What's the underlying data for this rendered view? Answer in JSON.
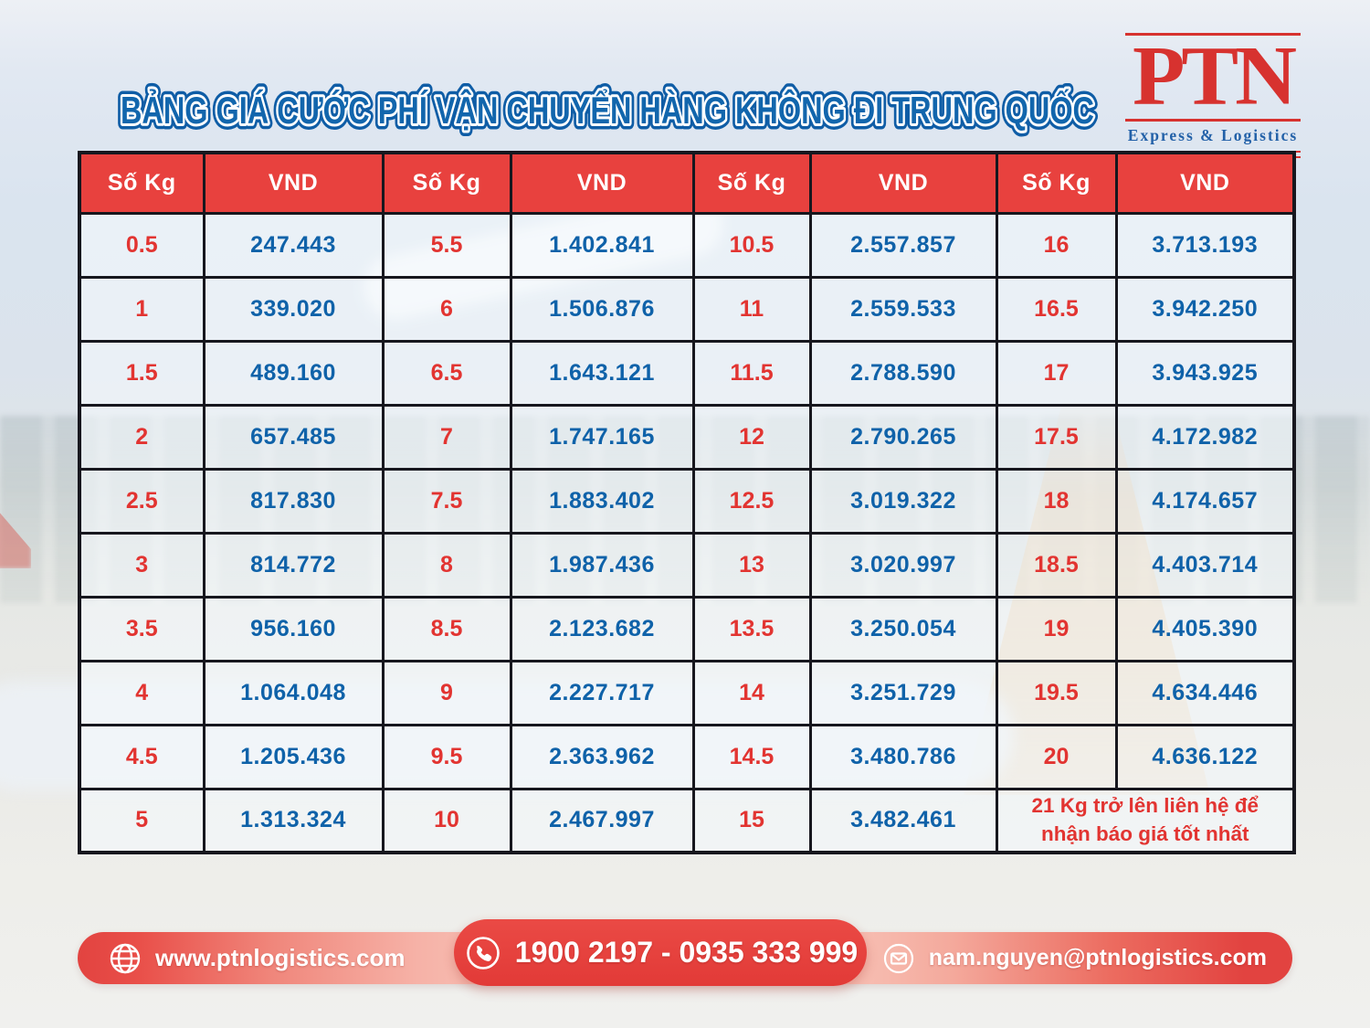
{
  "title": "BẢNG GIÁ CƯỚC PHÍ VẬN CHUYỂN HÀNG KHÔNG ĐI TRUNG QUỐC",
  "logo": {
    "name": "PTN",
    "tagline": "Express & Logistics"
  },
  "table": {
    "columns": [
      "Số Kg",
      "VND",
      "Số Kg",
      "VND",
      "Số Kg",
      "VND",
      "Số Kg",
      "VND"
    ],
    "rows": [
      [
        "0.5",
        "247.443",
        "5.5",
        "1.402.841",
        "10.5",
        "2.557.857",
        "16",
        "3.713.193"
      ],
      [
        "1",
        "339.020",
        "6",
        "1.506.876",
        "11",
        "2.559.533",
        "16.5",
        "3.942.250"
      ],
      [
        "1.5",
        "489.160",
        "6.5",
        "1.643.121",
        "11.5",
        "2.788.590",
        "17",
        "3.943.925"
      ],
      [
        "2",
        "657.485",
        "7",
        "1.747.165",
        "12",
        "2.790.265",
        "17.5",
        "4.172.982"
      ],
      [
        "2.5",
        "817.830",
        "7.5",
        "1.883.402",
        "12.5",
        "3.019.322",
        "18",
        "4.174.657"
      ],
      [
        "3",
        "814.772",
        "8",
        "1.987.436",
        "13",
        "3.020.997",
        "18.5",
        "4.403.714"
      ],
      [
        "3.5",
        "956.160",
        "8.5",
        "2.123.682",
        "13.5",
        "3.250.054",
        "19",
        "4.405.390"
      ],
      [
        "4",
        "1.064.048",
        "9",
        "2.227.717",
        "14",
        "3.251.729",
        "19.5",
        "4.634.446"
      ],
      [
        "4.5",
        "1.205.436",
        "9.5",
        "2.363.962",
        "14.5",
        "3.480.786",
        "20",
        "4.636.122"
      ],
      [
        "5",
        "1.313.324",
        "10",
        "2.467.997",
        "15",
        "3.482.461"
      ]
    ],
    "note": "21 Kg trở lên liên hệ để nhận báo giá tốt nhất"
  },
  "footer": {
    "website": "www.ptnlogistics.com",
    "phone": "1900 2197 - 0935 333 999",
    "email": "nam.nguyen@ptnlogistics.com"
  },
  "colors": {
    "header_red": "#e8413e",
    "kg_red": "#e23431",
    "price_blue": "#0f62a9",
    "title_blue": "#1266ad",
    "logo_red": "#d7322f",
    "logo_blue": "#2361a8",
    "table_border": "#17171e",
    "footer_red": "#e24340"
  }
}
